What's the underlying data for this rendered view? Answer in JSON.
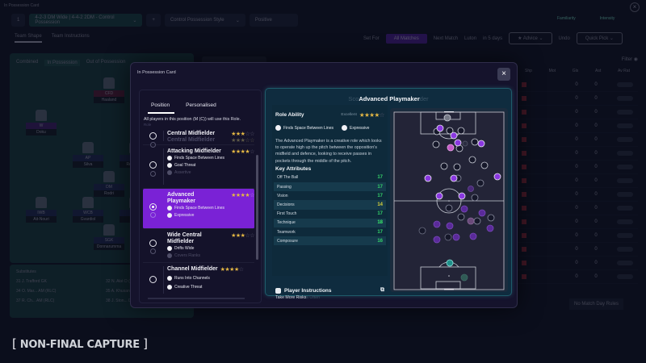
{
  "background": {
    "window_title": "In Possession Card",
    "formation_number": "1",
    "formation_select": "4-2-3 DM Wide | 4-4-2 2DM - Control Possession",
    "style_select": "Control Possession Style",
    "mentality": "Positive",
    "familiarity_label": "Familiarity",
    "intensity_label": "Intensity",
    "tabs": [
      "Team Shape",
      "Team Instructions"
    ],
    "set_for_label": "Set For",
    "all_matches": "All Matches",
    "next_match": "Next Match",
    "opponent": "Luton",
    "opponent_when": "in 5 days",
    "advice": "Advice",
    "undo": "Undo",
    "quick_pick": "Quick Pick",
    "pitch_tabs": [
      "Combined",
      "In Possession",
      "Out of Possession"
    ],
    "players": [
      {
        "role": "CFD",
        "name": "Haaland",
        "num": "9"
      },
      {
        "role": "W",
        "name": "Doku",
        "num": "11"
      },
      {
        "role": "AP",
        "name": "Silva",
        "num": "20"
      },
      {
        "role": "AP",
        "name": "Rejinders",
        "num": "4"
      },
      {
        "role": "DM",
        "name": "Rodri",
        "num": "16"
      },
      {
        "role": "IWB",
        "name": "Ait-Nouri",
        "num": "21"
      },
      {
        "role": "WCB",
        "name": "Gvardiol",
        "num": "24"
      },
      {
        "role": "CB",
        "name": "Dias",
        "num": "3"
      },
      {
        "role": "SGK",
        "name": "Donnarumma",
        "num": "25"
      }
    ],
    "subs_title": "Substitutes",
    "subs": [
      {
        "num": "31",
        "name": "J. Trafford",
        "pos": "GK"
      },
      {
        "num": "32",
        "name": "N. Aké",
        "pos": "D (LC), DM"
      },
      {
        "num": "34",
        "name": "O. Mar...",
        "pos": "AM (RLC)"
      },
      {
        "num": "35",
        "name": "A. Khusanov",
        "pos": "D (C)"
      },
      {
        "num": "37",
        "name": "R. Ch...",
        "pos": "AM (RLC)"
      },
      {
        "num": "38",
        "name": "J. Ston...",
        "pos": "D (RC)"
      }
    ],
    "filter_label": "Filter",
    "table_headers": [
      "Shp",
      "Mot",
      "Gls",
      "Ast",
      "Av Rat"
    ],
    "table_rows": [
      {
        "gls": "0",
        "ast": "0",
        "rat": "-"
      },
      {
        "gls": "0",
        "ast": "0",
        "rat": "-"
      },
      {
        "gls": "0",
        "ast": "0",
        "rat": "-"
      },
      {
        "gls": "0",
        "ast": "0",
        "rat": "-"
      },
      {
        "gls": "0",
        "ast": "0",
        "rat": "-"
      },
      {
        "gls": "0",
        "ast": "0",
        "rat": "-"
      },
      {
        "gls": "0",
        "ast": "0",
        "rat": "-"
      },
      {
        "gls": "0",
        "ast": "0",
        "rat": "-"
      },
      {
        "gls": "0",
        "ast": "0",
        "rat": "-"
      },
      {
        "gls": "0",
        "ast": "0",
        "rat": "-"
      },
      {
        "gls": "0",
        "ast": "0",
        "rat": "-"
      },
      {
        "gls": "0",
        "ast": "0",
        "rat": "-"
      },
      {
        "gls": "0",
        "ast": "0",
        "rat": "-"
      },
      {
        "gls": "0",
        "ast": "0",
        "rat": "-"
      },
      {
        "gls": "0",
        "ast": "0",
        "rat": "-"
      }
    ],
    "match_day_rules": "No Match Day Rules"
  },
  "stamp": {
    "text": "NON-FINAL CAPTURE",
    "open": "[",
    "close": "]"
  },
  "modal": {
    "title": "In Possession Card",
    "close_icon": "×",
    "tabs": [
      {
        "label": "Position",
        "active": true
      },
      {
        "label": "Personalised",
        "active": false
      }
    ],
    "info_text": "All players in this position (M (C)) will use this Role.",
    "role_label": "Role",
    "roles": [
      {
        "name": "Central Midfielder",
        "ghost": "Central Midfielder",
        "stars": "★★★",
        "stars_off": "☆☆",
        "traits": [],
        "selected": false
      },
      {
        "name": "Attacking Midfielder",
        "ghost": "Central",
        "stars": "★★★★",
        "stars_off": "☆",
        "traits": [
          "Finds Space Between Lines",
          "Goal Threat"
        ],
        "dim_trait": "Assertive",
        "selected": false
      },
      {
        "name": "Advanced Playmaker",
        "ghost": "Central",
        "stars": "★★★★",
        "stars_off": "☆",
        "traits": [
          "Finds Space Between Lines",
          "Expressive"
        ],
        "dim_trait": "Cautious",
        "selected": true
      },
      {
        "name": "Wide Central Midfielder",
        "ghost": "rring Central",
        "stars": "★★★",
        "stars_off": "☆☆",
        "traits": [
          "Drifts Wide"
        ],
        "dim_trait": "Covers Flanks",
        "selected": false
      },
      {
        "name": "Channel Midfielder",
        "ghost": "",
        "stars": "★★★★",
        "stars_off": "☆",
        "traits": [
          "Runs Into Channels",
          "Creative Threat"
        ],
        "selected": false
      }
    ],
    "detail": {
      "title": "Advanced Playmaker",
      "title_ghost_prefix": "Sco",
      "title_ghost_suffix": "der",
      "role_ability_label": "Role Ability",
      "rating_label": "Excellent",
      "rating_stars": "★★★★",
      "rating_stars_off": "☆",
      "traits": [
        "Finds Space Between Lines",
        "Expressive"
      ],
      "description": "The Advanced Playmaker is a creative role which looks to operate high up the pitch between the opposition's midfield and defence, looking to receive passes in pockets through the middle of the pitch.",
      "key_attributes_label": "Key Attributes",
      "attributes": [
        {
          "name": "Off The Ball",
          "value": "17"
        },
        {
          "name": "Passing",
          "value": "17"
        },
        {
          "name": "Vision",
          "value": "17"
        },
        {
          "name": "Decisions",
          "value": "14"
        },
        {
          "name": "First Touch",
          "value": "17"
        },
        {
          "name": "Technique",
          "value": "18"
        },
        {
          "name": "Teamwork",
          "value": "17"
        },
        {
          "name": "Composure",
          "value": "16"
        }
      ],
      "player_instructions_label": "Player Instructions",
      "player_instructions_value": "Take More Risks",
      "player_instructions_ghost": "s Often",
      "external_link_icon": "⧉"
    },
    "colors": {
      "accent_purple": "#7a22d6",
      "panel_teal": "#0f2c3f",
      "attr_green": "#34d36a",
      "attr_amber": "#d8d33a",
      "star_gold": "#e4b744"
    }
  }
}
